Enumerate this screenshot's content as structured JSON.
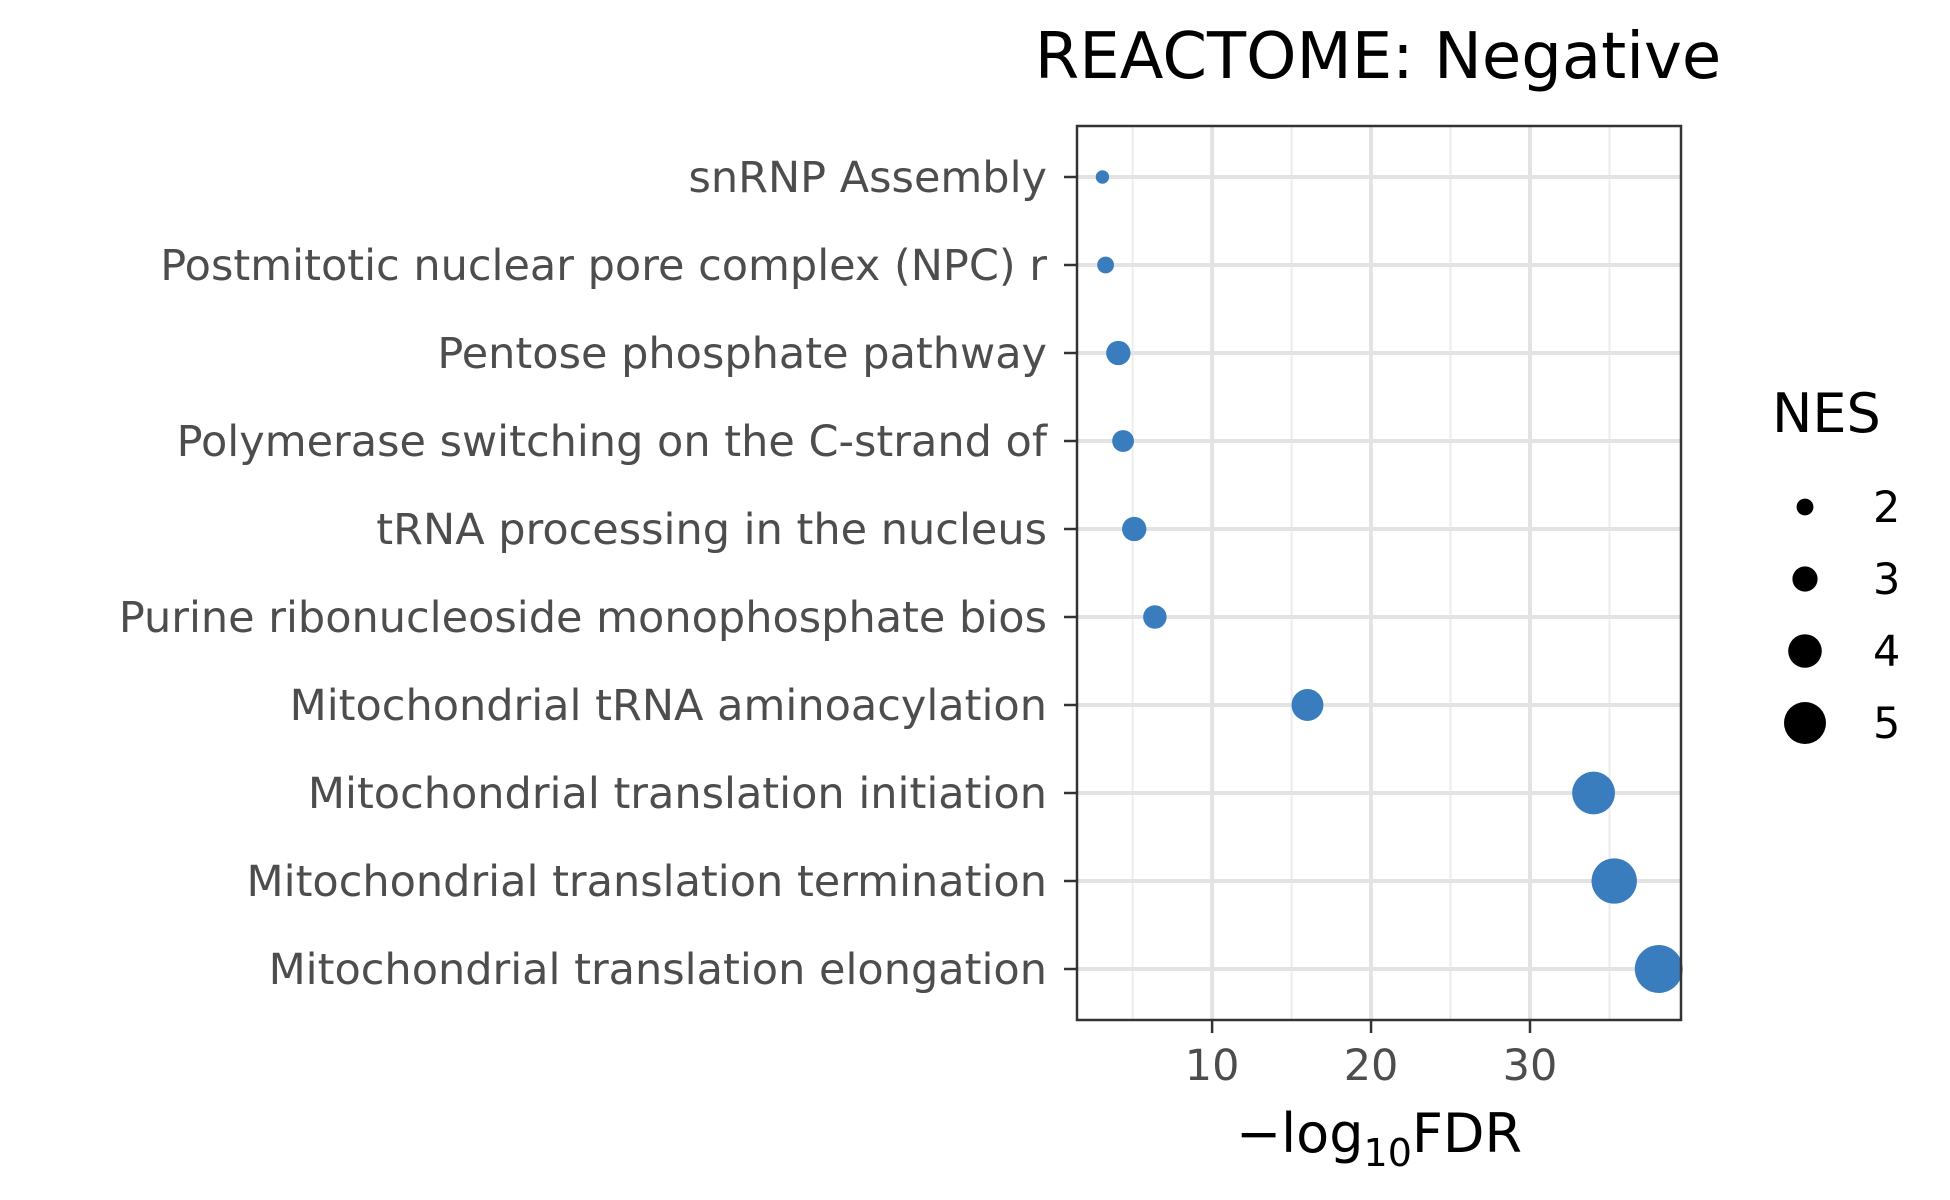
{
  "chart_data": {
    "type": "scatter",
    "title": "REACTOME: Negative",
    "xlabel": "−log10FDR",
    "xlabel_parts": {
      "prefix": "−log",
      "subscript": "10",
      "suffix": "FDR"
    },
    "ylabel": "",
    "xlim": [
      1.5,
      39.5
    ],
    "xticks": [
      10,
      20,
      30
    ],
    "xtick_labels": [
      "10",
      "20",
      "30"
    ],
    "x_minor_gridlines": [
      5,
      15,
      25,
      35
    ],
    "categories": [
      "snRNP Assembly",
      "Postmitotic nuclear pore complex (NPC) r",
      "Pentose phosphate pathway",
      "Polymerase switching on the C-strand of ",
      "tRNA processing in the nucleus",
      "Purine ribonucleoside monophosphate bios",
      "Mitochondrial tRNA aminoacylation",
      "Mitochondrial translation initiation",
      "Mitochondrial translation termination",
      "Mitochondrial translation elongation"
    ],
    "x": [
      3.1,
      3.3,
      4.1,
      4.4,
      5.1,
      6.4,
      16.0,
      34.0,
      35.3,
      38.1
    ],
    "size": [
      1.6,
      2.0,
      2.9,
      2.6,
      2.9,
      2.8,
      3.8,
      5.1,
      5.4,
      5.7
    ],
    "point_color": "#3A7DBF",
    "grid": true,
    "legend": {
      "title": "NES",
      "position": "right",
      "values": [
        2,
        3,
        4,
        5
      ],
      "labels": [
        "2",
        "3",
        "4",
        "5"
      ],
      "symbol_color": "#000000"
    }
  }
}
